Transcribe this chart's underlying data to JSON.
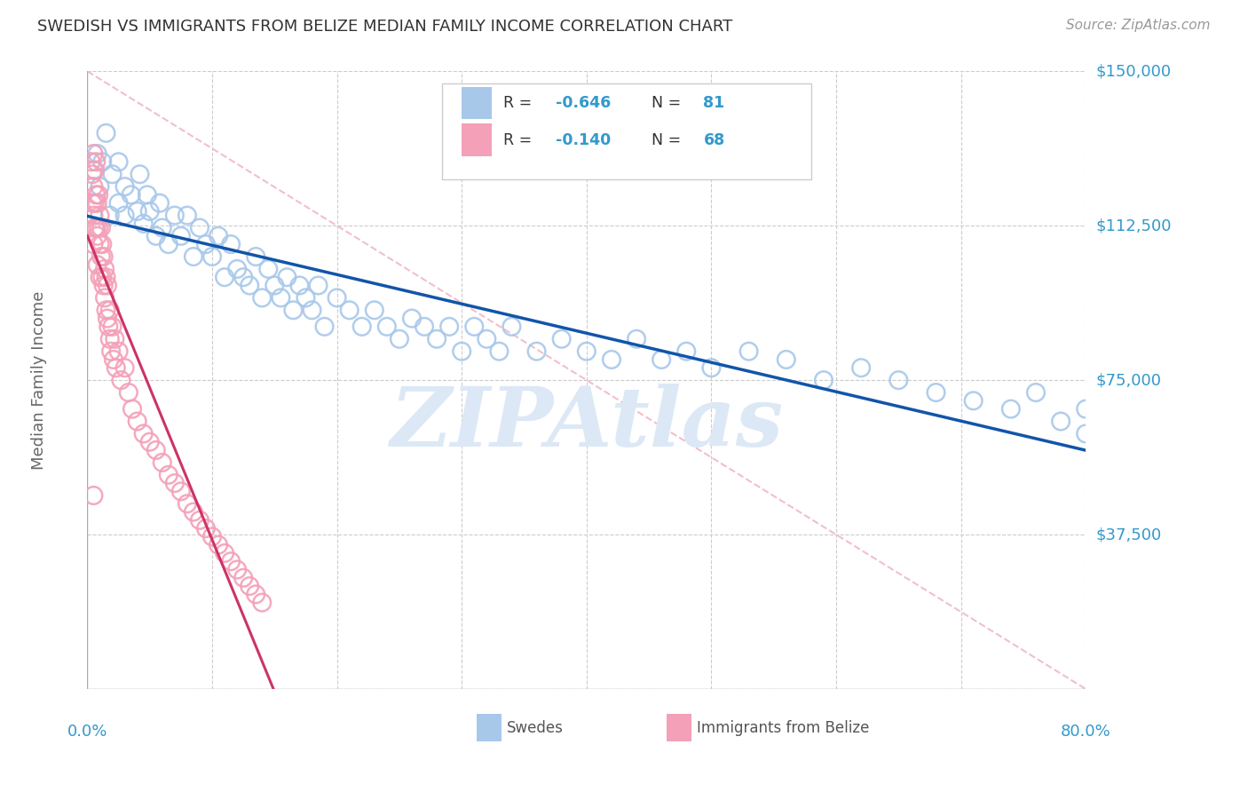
{
  "title": "SWEDISH VS IMMIGRANTS FROM BELIZE MEDIAN FAMILY INCOME CORRELATION CHART",
  "source": "Source: ZipAtlas.com",
  "ylabel": "Median Family Income",
  "yticks": [
    0,
    37500,
    75000,
    112500,
    150000
  ],
  "ytick_labels": [
    "",
    "$37,500",
    "$75,000",
    "$112,500",
    "$150,000"
  ],
  "xlim": [
    0.0,
    0.8
  ],
  "ylim": [
    0,
    150000
  ],
  "legend_R_blue": "-0.646",
  "legend_N_blue": "81",
  "legend_R_pink": "-0.140",
  "legend_N_pink": "68",
  "swedes_color": "#a8c8ea",
  "belize_color": "#f4a0b8",
  "trend_blue_color": "#1155aa",
  "trend_pink_color": "#cc3366",
  "diag_color": "#f0b8c8",
  "bg_color": "#ffffff",
  "grid_color": "#cccccc",
  "title_color": "#333333",
  "ylabel_color": "#666666",
  "tick_label_color": "#3399cc",
  "watermark_color": "#dce8f5",
  "swedes_x": [
    0.005,
    0.008,
    0.01,
    0.012,
    0.015,
    0.018,
    0.02,
    0.025,
    0.025,
    0.03,
    0.03,
    0.035,
    0.04,
    0.042,
    0.045,
    0.048,
    0.05,
    0.055,
    0.058,
    0.06,
    0.065,
    0.07,
    0.075,
    0.08,
    0.085,
    0.09,
    0.095,
    0.1,
    0.105,
    0.11,
    0.115,
    0.12,
    0.125,
    0.13,
    0.135,
    0.14,
    0.145,
    0.15,
    0.155,
    0.16,
    0.165,
    0.17,
    0.175,
    0.18,
    0.185,
    0.19,
    0.2,
    0.21,
    0.22,
    0.23,
    0.24,
    0.25,
    0.26,
    0.27,
    0.28,
    0.29,
    0.3,
    0.31,
    0.32,
    0.33,
    0.34,
    0.36,
    0.38,
    0.4,
    0.42,
    0.44,
    0.46,
    0.48,
    0.5,
    0.53,
    0.56,
    0.59,
    0.62,
    0.65,
    0.68,
    0.71,
    0.74,
    0.76,
    0.78,
    0.8,
    0.8
  ],
  "swedes_y": [
    126000,
    130000,
    122000,
    128000,
    135000,
    115000,
    125000,
    118000,
    128000,
    122000,
    115000,
    120000,
    116000,
    125000,
    113000,
    120000,
    116000,
    110000,
    118000,
    112000,
    108000,
    115000,
    110000,
    115000,
    105000,
    112000,
    108000,
    105000,
    110000,
    100000,
    108000,
    102000,
    100000,
    98000,
    105000,
    95000,
    102000,
    98000,
    95000,
    100000,
    92000,
    98000,
    95000,
    92000,
    98000,
    88000,
    95000,
    92000,
    88000,
    92000,
    88000,
    85000,
    90000,
    88000,
    85000,
    88000,
    82000,
    88000,
    85000,
    82000,
    88000,
    82000,
    85000,
    82000,
    80000,
    85000,
    80000,
    82000,
    78000,
    82000,
    80000,
    75000,
    78000,
    75000,
    72000,
    70000,
    68000,
    72000,
    65000,
    62000,
    68000
  ],
  "belize_x": [
    0.003,
    0.004,
    0.004,
    0.005,
    0.005,
    0.005,
    0.005,
    0.005,
    0.006,
    0.006,
    0.006,
    0.007,
    0.007,
    0.007,
    0.008,
    0.008,
    0.008,
    0.009,
    0.009,
    0.01,
    0.01,
    0.01,
    0.011,
    0.011,
    0.012,
    0.012,
    0.013,
    0.013,
    0.014,
    0.014,
    0.015,
    0.015,
    0.016,
    0.016,
    0.017,
    0.018,
    0.018,
    0.019,
    0.02,
    0.021,
    0.022,
    0.023,
    0.025,
    0.027,
    0.03,
    0.033,
    0.036,
    0.04,
    0.045,
    0.05,
    0.055,
    0.06,
    0.065,
    0.07,
    0.075,
    0.08,
    0.085,
    0.09,
    0.095,
    0.1,
    0.105,
    0.11,
    0.115,
    0.12,
    0.125,
    0.13,
    0.135,
    0.14
  ],
  "belize_y": [
    128000,
    125000,
    118000,
    130000,
    122000,
    115000,
    108000,
    47000,
    126000,
    118000,
    112000,
    128000,
    120000,
    112000,
    118000,
    110000,
    103000,
    120000,
    112000,
    115000,
    108000,
    100000,
    112000,
    105000,
    108000,
    100000,
    105000,
    98000,
    102000,
    95000,
    100000,
    92000,
    98000,
    90000,
    88000,
    85000,
    92000,
    82000,
    88000,
    80000,
    85000,
    78000,
    82000,
    75000,
    78000,
    72000,
    68000,
    65000,
    62000,
    60000,
    58000,
    55000,
    52000,
    50000,
    48000,
    45000,
    43000,
    41000,
    39000,
    37000,
    35000,
    33000,
    31000,
    29000,
    27000,
    25000,
    23000,
    21000
  ]
}
